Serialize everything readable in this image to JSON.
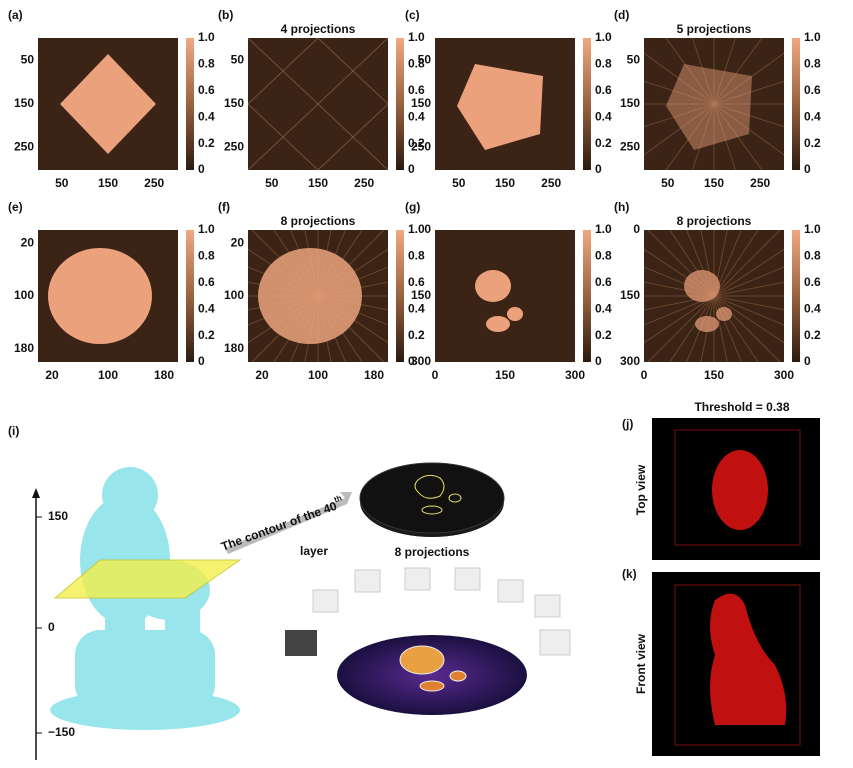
{
  "panels": [
    {
      "label": "(a)",
      "xticks": [
        "50",
        "150",
        "250"
      ],
      "yticks": [
        "50",
        "150",
        "250"
      ],
      "cbar": [
        "0",
        "0.2",
        "0.4",
        "0.6",
        "0.8",
        "1.0"
      ]
    },
    {
      "label": "(b)",
      "title": "4 projections",
      "xticks": [
        "50",
        "150",
        "250"
      ],
      "yticks": [
        "50",
        "150",
        "250"
      ],
      "cbar": [
        "0",
        "0.2",
        "0.4",
        "0.6",
        "0.8",
        "1.0"
      ]
    },
    {
      "label": "(c)",
      "xticks": [
        "50",
        "150",
        "250"
      ],
      "yticks": [
        "50",
        "150",
        "250"
      ],
      "cbar": [
        "0",
        "0.2",
        "0.4",
        "0.6",
        "0.8",
        "1.0"
      ]
    },
    {
      "label": "(d)",
      "title": "5 projections",
      "xticks": [
        "50",
        "150",
        "250"
      ],
      "yticks": [
        "50",
        "150",
        "250"
      ],
      "cbar": [
        "0",
        "0.2",
        "0.4",
        "0.6",
        "0.8",
        "1.0"
      ]
    },
    {
      "label": "(e)",
      "xticks": [
        "20",
        "100",
        "180"
      ],
      "yticks": [
        "20",
        "100",
        "180"
      ],
      "cbar": [
        "0",
        "0.2",
        "0.4",
        "0.6",
        "0.8",
        "1.0"
      ]
    },
    {
      "label": "(f)",
      "title": "8 projections",
      "xticks": [
        "20",
        "100",
        "180"
      ],
      "yticks": [
        "20",
        "100",
        "180"
      ],
      "cbar": [
        "0",
        "0.2",
        "0.4",
        "0.6",
        "0.8",
        "1.0"
      ]
    },
    {
      "label": "(g)",
      "xticks": [
        "0",
        "150",
        "300"
      ],
      "yticks": [
        "0",
        "150",
        "300"
      ],
      "cbar": [
        "0",
        "0.2",
        "0.4",
        "0.6",
        "0.8",
        "1.0"
      ]
    },
    {
      "label": "(h)",
      "title": "8 projections",
      "xticks": [
        "0",
        "150",
        "300"
      ],
      "yticks": [
        "0",
        "150",
        "300"
      ],
      "cbar": [
        "0",
        "0.2",
        "0.4",
        "0.6",
        "0.8",
        "1.0"
      ]
    }
  ],
  "panel_i": {
    "label": "(i)",
    "axis_ticks": [
      "150",
      "0",
      "−150"
    ],
    "contour_text": "The contour of the 40",
    "contour_sup": "th",
    "contour_text2": "layer",
    "projections": "8 projections"
  },
  "threshold": "Threshold = 0.38",
  "panel_j": {
    "label": "(j)",
    "view": "Top view"
  },
  "panel_k": {
    "label": "(k)",
    "view": "Front view"
  }
}
